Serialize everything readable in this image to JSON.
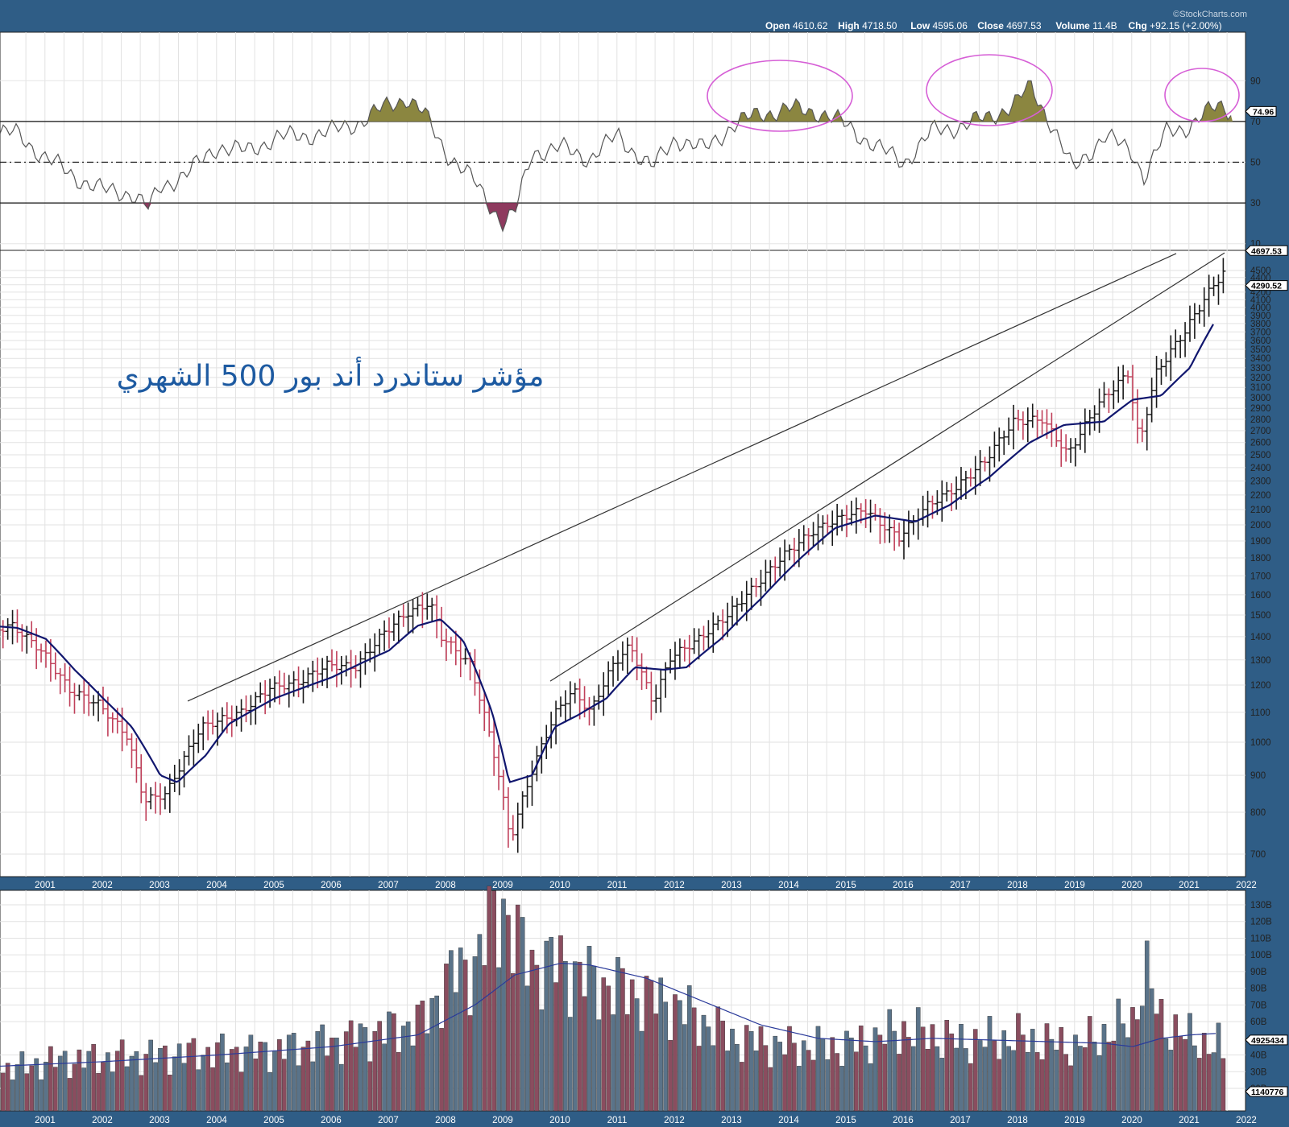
{
  "header": {
    "brand": "©StockCharts.com",
    "items": [
      {
        "label": "Open",
        "value": "4610.62"
      },
      {
        "label": "High",
        "value": "4718.50"
      },
      {
        "label": "Low",
        "value": "4595.06"
      },
      {
        "label": "Close",
        "value": "4697.53"
      },
      {
        "label": "Volume",
        "value": "11.4B"
      },
      {
        "label": "Chg",
        "value": "+92.15 (+2.00%)"
      }
    ]
  },
  "colors": {
    "background": "#2f5d86",
    "up_bar": "#1a1a1a",
    "down_bar": "#c0405a",
    "ma_line": "#10166e",
    "rsi_overbought_fill": "#8b8640",
    "rsi_oversold_fill": "#8e3a5e",
    "highlight_circle": "#d65fd6",
    "volume_up": "#5a7389",
    "volume_down": "#8a4d5f"
  },
  "chart_data": [
    {
      "type": "line",
      "panel": "RSI",
      "ylim": [
        0,
        100
      ],
      "yticks": [
        "10",
        "30",
        "50",
        "70",
        "90"
      ],
      "reference_lines": [
        30,
        50,
        70
      ],
      "last_value_tag": "74.96",
      "x": [
        2000.5,
        2001.0,
        2001.5,
        2002.0,
        2002.5,
        2002.8,
        2003.0,
        2003.5,
        2004.0,
        2004.5,
        2005.0,
        2005.5,
        2006.0,
        2006.5,
        2007.0,
        2007.3,
        2007.6,
        2008.0,
        2008.5,
        2009.0,
        2009.2,
        2009.5,
        2010.0,
        2010.5,
        2011.0,
        2011.6,
        2012.0,
        2012.5,
        2013.0,
        2013.5,
        2014.0,
        2014.5,
        2015.0,
        2015.6,
        2016.0,
        2016.5,
        2017.0,
        2017.5,
        2018.0,
        2018.2,
        2018.6,
        2018.95,
        2019.5,
        2020.0,
        2020.2,
        2020.6,
        2021.0,
        2021.5,
        2021.8
      ],
      "values": [
        64,
        52,
        43,
        36,
        35,
        27,
        38,
        45,
        58,
        55,
        62,
        63,
        65,
        70,
        78,
        82,
        74,
        55,
        40,
        20,
        25,
        55,
        57,
        52,
        63,
        47,
        62,
        56,
        68,
        74,
        76,
        75,
        68,
        56,
        50,
        65,
        68,
        72,
        80,
        88,
        68,
        46,
        63,
        55,
        43,
        65,
        68,
        78,
        75
      ]
    },
    {
      "type": "line",
      "panel": "price",
      "title": "مؤشر ستاندرد أند بور 500 الشهري",
      "ylim_log": [
        660,
        4800
      ],
      "yticks": [
        "700",
        "800",
        "900",
        "1000",
        "1100",
        "1200",
        "1300",
        "1400",
        "1500",
        "1600",
        "1700",
        "1800",
        "1900",
        "2000",
        "2100",
        "2200",
        "2300",
        "2400",
        "2500",
        "2600",
        "2700",
        "2800",
        "2900",
        "3000",
        "3100",
        "3200",
        "3300",
        "3400",
        "3500",
        "3600",
        "3700",
        "3800",
        "3900",
        "4000",
        "4100",
        "4200",
        "4300",
        "4400",
        "4500"
      ],
      "last_close_tag": "4697.53",
      "ma_tag": "4290.52",
      "series": [
        {
          "values_x": [
            2000.0,
            2000.5,
            2001.0,
            2001.5,
            2002.0,
            2002.5,
            2002.8,
            2003.2,
            2003.8,
            2004.5,
            2005.0,
            2005.5,
            2006.0,
            2006.5,
            2007.0,
            2007.4,
            2007.8,
            2008.0,
            2008.5,
            2009.0,
            2009.2,
            2009.6,
            2010.0,
            2010.3,
            2010.6,
            2011.0,
            2011.3,
            2011.7,
            2012.0,
            2012.5,
            2013.0,
            2013.5,
            2014.0,
            2014.5,
            2015.0,
            2015.4,
            2015.7,
            2016.0,
            2016.5,
            2017.0,
            2017.5,
            2018.0,
            2018.5,
            2018.95,
            2019.5,
            2020.0,
            2020.2,
            2020.5,
            2021.0,
            2021.5,
            2021.9
          ],
          "values": [
            1420,
            1450,
            1340,
            1180,
            1130,
            1020,
            830,
            850,
            1050,
            1100,
            1190,
            1210,
            1280,
            1270,
            1420,
            1510,
            1560,
            1400,
            1280,
            900,
            730,
            920,
            1100,
            1180,
            1100,
            1280,
            1360,
            1130,
            1310,
            1390,
            1500,
            1650,
            1820,
            1960,
            2050,
            2100,
            2000,
            1920,
            2130,
            2250,
            2450,
            2780,
            2800,
            2500,
            2950,
            3240,
            2580,
            3250,
            3710,
            4300,
            4697
          ]
        },
        {
          "values_x": [
            2000.0,
            2000.5,
            2001.0,
            2001.5,
            2002.0,
            2002.5,
            2003.0,
            2003.3,
            2003.8,
            2004.2,
            2005.0,
            2006.0,
            2007.0,
            2007.5,
            2007.9,
            2008.3,
            2008.8,
            2009.1,
            2009.5,
            2009.9,
            2010.3,
            2010.8,
            2011.3,
            2011.8,
            2012.2,
            2012.8,
            2013.5,
            2014.2,
            2014.8,
            2015.5,
            2016.2,
            2016.8,
            2017.5,
            2018.2,
            2018.8,
            2019.5,
            2020.0,
            2020.5,
            2021.0,
            2021.5,
            2021.9
          ],
          "values": [
            1450,
            1440,
            1390,
            1260,
            1150,
            1050,
            900,
            880,
            960,
            1060,
            1150,
            1230,
            1340,
            1450,
            1480,
            1380,
            1100,
            880,
            900,
            1050,
            1090,
            1150,
            1270,
            1260,
            1270,
            1390,
            1580,
            1800,
            1980,
            2060,
            2020,
            2130,
            2330,
            2600,
            2750,
            2780,
            2980,
            3020,
            3300,
            3900,
            4290
          ]
        }
      ]
    },
    {
      "type": "bar",
      "panel": "volume",
      "yticks": [
        "20B",
        "30B",
        "40B",
        "60B",
        "70B",
        "80B",
        "90B",
        "100B",
        "110B",
        "120B",
        "130B"
      ],
      "ma_tag": "4925434",
      "last_value_tag": "1140776",
      "x": [
        2000.5,
        2001.0,
        2002.0,
        2003.0,
        2004.0,
        2005.0,
        2006.0,
        2007.0,
        2007.6,
        2008.0,
        2008.5,
        2008.8,
        2009.0,
        2009.2,
        2009.5,
        2010.0,
        2010.5,
        2011.0,
        2011.5,
        2012.0,
        2013.0,
        2014.0,
        2015.0,
        2016.0,
        2017.0,
        2018.0,
        2019.0,
        2020.0,
        2020.2,
        2020.5,
        2021.0,
        2021.5,
        2021.9
      ],
      "values": [
        32,
        36,
        38,
        40,
        42,
        43,
        48,
        55,
        60,
        85,
        95,
        120,
        130,
        110,
        95,
        95,
        85,
        80,
        75,
        70,
        50,
        45,
        45,
        55,
        48,
        50,
        45,
        60,
        92,
        60,
        50,
        45,
        12
      ],
      "ma_x": [
        2000.0,
        2002.0,
        2004.0,
        2006.0,
        2007.5,
        2008.5,
        2009.2,
        2010.0,
        2010.5,
        2011.5,
        2012.5,
        2013.5,
        2014.5,
        2015.5,
        2016.5,
        2017.5,
        2018.5,
        2019.5,
        2020.0,
        2020.5,
        2021.0,
        2021.5,
        2021.9
      ],
      "ma_values": [
        33,
        36,
        40,
        45,
        52,
        70,
        88,
        95,
        94,
        86,
        72,
        58,
        50,
        48,
        50,
        49,
        48,
        47,
        45,
        50,
        52,
        53,
        49
      ]
    }
  ],
  "x_axis": {
    "labels": [
      "2001",
      "2002",
      "2003",
      "2004",
      "2005",
      "2006",
      "2007",
      "2008",
      "2009",
      "2010",
      "2011",
      "2012",
      "2013",
      "2014",
      "2015",
      "2016",
      "2017",
      "2018",
      "2019",
      "2020",
      "2021",
      "2022"
    ]
  }
}
